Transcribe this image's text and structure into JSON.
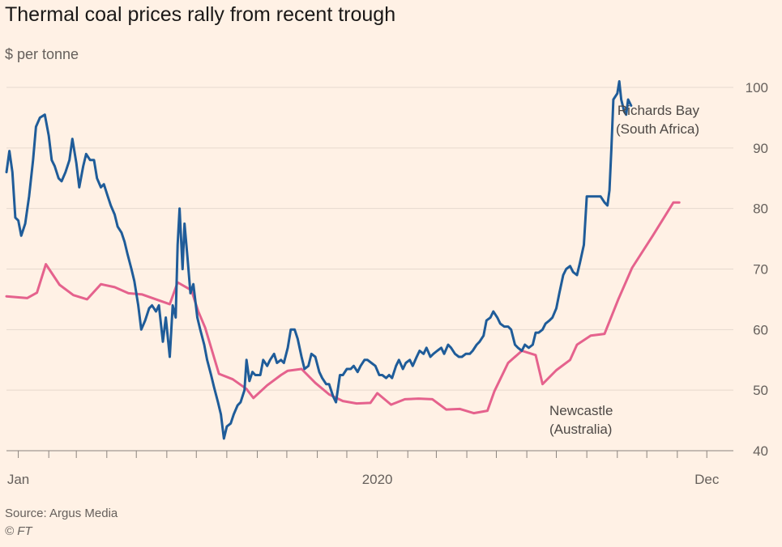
{
  "header": {
    "title": "Thermal coal prices rally from recent trough",
    "subtitle": "$ per tonne"
  },
  "footer": {
    "source": "Source: Argus Media",
    "credit": "© FT"
  },
  "chart_data": {
    "type": "line",
    "title": "Thermal coal prices rally from recent trough",
    "ylabel": "$ per tonne",
    "xlabel": "",
    "ylim": [
      40,
      100
    ],
    "yticks": [
      40,
      50,
      60,
      70,
      80,
      90,
      100
    ],
    "xlim": [
      "2018-12-20",
      "2020-12-28"
    ],
    "x_tick_marks": [
      "2019-01-01",
      "2019-02-01",
      "2019-03-01",
      "2019-04-01",
      "2019-05-01",
      "2019-06-01",
      "2019-07-01",
      "2019-08-01",
      "2019-09-01",
      "2019-10-01",
      "2019-11-01",
      "2019-12-01",
      "2020-01-01",
      "2020-02-01",
      "2020-03-01",
      "2020-04-01",
      "2020-05-01",
      "2020-06-01",
      "2020-07-01",
      "2020-08-01",
      "2020-09-01",
      "2020-10-01",
      "2020-11-01",
      "2020-12-01"
    ],
    "x_tick_labels": [
      {
        "date": "2019-01-01",
        "label": "Jan"
      },
      {
        "date": "2020-01-01",
        "label": "2020"
      },
      {
        "date": "2020-12-01",
        "label": "Dec"
      }
    ],
    "grid": true,
    "y_axis_position": "right",
    "series": [
      {
        "name": "Richards Bay (South Africa)",
        "annotation": [
          "Richards Bay",
          "(South Africa)"
        ],
        "color": "#1f5c99",
        "points": [
          [
            "2018-12-20",
            86
          ],
          [
            "2018-12-23",
            89.5
          ],
          [
            "2018-12-26",
            86
          ],
          [
            "2018-12-29",
            78.5
          ],
          [
            "2019-01-01",
            78
          ],
          [
            "2019-01-04",
            75.5
          ],
          [
            "2019-01-08",
            77.5
          ],
          [
            "2019-01-12",
            82
          ],
          [
            "2019-01-16",
            88
          ],
          [
            "2019-01-19",
            93.5
          ],
          [
            "2019-01-23",
            95
          ],
          [
            "2019-01-28",
            95.5
          ],
          [
            "2019-02-01",
            92
          ],
          [
            "2019-02-04",
            88
          ],
          [
            "2019-02-07",
            87
          ],
          [
            "2019-02-11",
            85
          ],
          [
            "2019-02-14",
            84.5
          ],
          [
            "2019-02-18",
            86
          ],
          [
            "2019-02-22",
            88
          ],
          [
            "2019-02-25",
            91.5
          ],
          [
            "2019-03-01",
            87.5
          ],
          [
            "2019-03-04",
            83.5
          ],
          [
            "2019-03-08",
            87
          ],
          [
            "2019-03-11",
            89
          ],
          [
            "2019-03-15",
            88
          ],
          [
            "2019-03-19",
            88
          ],
          [
            "2019-03-22",
            85
          ],
          [
            "2019-03-26",
            83.5
          ],
          [
            "2019-03-29",
            84
          ],
          [
            "2019-04-02",
            82
          ],
          [
            "2019-04-05",
            80.5
          ],
          [
            "2019-04-09",
            79
          ],
          [
            "2019-04-12",
            77
          ],
          [
            "2019-04-16",
            76
          ],
          [
            "2019-04-19",
            74.5
          ],
          [
            "2019-04-22",
            72.5
          ],
          [
            "2019-04-26",
            70
          ],
          [
            "2019-04-29",
            68
          ],
          [
            "2019-05-03",
            64
          ],
          [
            "2019-05-06",
            60
          ],
          [
            "2019-05-10",
            61.5
          ],
          [
            "2019-05-14",
            63.5
          ],
          [
            "2019-05-17",
            64
          ],
          [
            "2019-05-21",
            63
          ],
          [
            "2019-05-24",
            64
          ],
          [
            "2019-05-28",
            58
          ],
          [
            "2019-05-31",
            62
          ],
          [
            "2019-06-04",
            55.5
          ],
          [
            "2019-06-07",
            64
          ],
          [
            "2019-06-10",
            62
          ],
          [
            "2019-06-12",
            74
          ],
          [
            "2019-06-14",
            80
          ],
          [
            "2019-06-17",
            70
          ],
          [
            "2019-06-19",
            77.5
          ],
          [
            "2019-06-22",
            72
          ],
          [
            "2019-06-25",
            66
          ],
          [
            "2019-06-28",
            67.5
          ],
          [
            "2019-07-02",
            62
          ],
          [
            "2019-07-05",
            60
          ],
          [
            "2019-07-09",
            57.5
          ],
          [
            "2019-07-12",
            55
          ],
          [
            "2019-07-16",
            52.5
          ],
          [
            "2019-07-19",
            50.5
          ],
          [
            "2019-07-23",
            48
          ],
          [
            "2019-07-26",
            46
          ],
          [
            "2019-07-29",
            42
          ],
          [
            "2019-08-01",
            44
          ],
          [
            "2019-08-05",
            44.5
          ],
          [
            "2019-08-08",
            46
          ],
          [
            "2019-08-12",
            47.5
          ],
          [
            "2019-08-15",
            48
          ],
          [
            "2019-08-19",
            50
          ],
          [
            "2019-08-21",
            55
          ],
          [
            "2019-08-24",
            51.5
          ],
          [
            "2019-08-27",
            53
          ],
          [
            "2019-08-30",
            52.5
          ],
          [
            "2019-09-04",
            52.5
          ],
          [
            "2019-09-07",
            55
          ],
          [
            "2019-09-11",
            54
          ],
          [
            "2019-09-14",
            55
          ],
          [
            "2019-09-18",
            56
          ],
          [
            "2019-09-21",
            54.5
          ],
          [
            "2019-09-25",
            55
          ],
          [
            "2019-09-28",
            54.5
          ],
          [
            "2019-10-02",
            57
          ],
          [
            "2019-10-05",
            60
          ],
          [
            "2019-10-09",
            60
          ],
          [
            "2019-10-12",
            58.5
          ],
          [
            "2019-10-16",
            55.5
          ],
          [
            "2019-10-19",
            53.5
          ],
          [
            "2019-10-23",
            54
          ],
          [
            "2019-10-26",
            56
          ],
          [
            "2019-10-30",
            55.5
          ],
          [
            "2019-11-03",
            53
          ],
          [
            "2019-11-06",
            52
          ],
          [
            "2019-11-10",
            51
          ],
          [
            "2019-11-13",
            51
          ],
          [
            "2019-11-17",
            49
          ],
          [
            "2019-11-20",
            48
          ],
          [
            "2019-11-24",
            52.5
          ],
          [
            "2019-11-27",
            52.5
          ],
          [
            "2019-12-01",
            53.5
          ],
          [
            "2019-12-05",
            53.5
          ],
          [
            "2019-12-08",
            54
          ],
          [
            "2019-12-12",
            53
          ],
          [
            "2019-12-15",
            54
          ],
          [
            "2019-12-19",
            55
          ],
          [
            "2019-12-22",
            55
          ],
          [
            "2019-12-26",
            54.5
          ],
          [
            "2019-12-30",
            54
          ],
          [
            "2020-01-03",
            52.5
          ],
          [
            "2020-01-06",
            52.5
          ],
          [
            "2020-01-10",
            52
          ],
          [
            "2020-01-13",
            52.5
          ],
          [
            "2020-01-16",
            52
          ],
          [
            "2020-01-20",
            54
          ],
          [
            "2020-01-23",
            55
          ],
          [
            "2020-01-27",
            53.5
          ],
          [
            "2020-01-30",
            54.5
          ],
          [
            "2020-02-03",
            55
          ],
          [
            "2020-02-06",
            54
          ],
          [
            "2020-02-10",
            55.5
          ],
          [
            "2020-02-13",
            56.5
          ],
          [
            "2020-02-17",
            56
          ],
          [
            "2020-02-20",
            57
          ],
          [
            "2020-02-24",
            55.5
          ],
          [
            "2020-02-27",
            56
          ],
          [
            "2020-03-02",
            56.5
          ],
          [
            "2020-03-06",
            57
          ],
          [
            "2020-03-09",
            56
          ],
          [
            "2020-03-13",
            57.5
          ],
          [
            "2020-03-16",
            57
          ],
          [
            "2020-03-20",
            56
          ],
          [
            "2020-03-24",
            55.5
          ],
          [
            "2020-03-27",
            55.5
          ],
          [
            "2020-03-31",
            56
          ],
          [
            "2020-04-04",
            56
          ],
          [
            "2020-04-07",
            56.5
          ],
          [
            "2020-04-11",
            57.5
          ],
          [
            "2020-04-14",
            58
          ],
          [
            "2020-04-18",
            59
          ],
          [
            "2020-04-21",
            61.5
          ],
          [
            "2020-04-25",
            62
          ],
          [
            "2020-04-28",
            63
          ],
          [
            "2020-05-02",
            62
          ],
          [
            "2020-05-05",
            61
          ],
          [
            "2020-05-09",
            60.5
          ],
          [
            "2020-05-13",
            60.5
          ],
          [
            "2020-05-16",
            60
          ],
          [
            "2020-05-20",
            57.5
          ],
          [
            "2020-05-23",
            57
          ],
          [
            "2020-05-27",
            56.5
          ],
          [
            "2020-05-30",
            57.5
          ],
          [
            "2020-06-03",
            57
          ],
          [
            "2020-06-07",
            57.5
          ],
          [
            "2020-06-10",
            59.5
          ],
          [
            "2020-06-13",
            59.5
          ],
          [
            "2020-06-17",
            60
          ],
          [
            "2020-06-20",
            61
          ],
          [
            "2020-06-24",
            61.5
          ],
          [
            "2020-06-27",
            62
          ],
          [
            "2020-07-01",
            63.5
          ],
          [
            "2020-07-04",
            66
          ],
          [
            "2020-07-08",
            69
          ],
          [
            "2020-07-11",
            70
          ],
          [
            "2020-07-15",
            70.5
          ],
          [
            "2020-07-18",
            69.5
          ],
          [
            "2020-07-22",
            69
          ],
          [
            "2020-07-25",
            71
          ],
          [
            "2020-07-29",
            74
          ],
          [
            "2020-08-01",
            82
          ],
          [
            "2020-08-05",
            82
          ],
          [
            "2020-08-08",
            82
          ],
          [
            "2020-08-12",
            82
          ],
          [
            "2020-08-15",
            82
          ],
          [
            "2020-08-19",
            81
          ],
          [
            "2020-08-22",
            80.5
          ],
          [
            "2020-08-24",
            83
          ],
          [
            "2020-08-26",
            90
          ],
          [
            "2020-08-28",
            98
          ],
          [
            "2020-09-01",
            99
          ],
          [
            "2020-09-03",
            101
          ],
          [
            "2020-09-05",
            98
          ],
          [
            "2020-09-08",
            96
          ],
          [
            "2020-09-10",
            95.5
          ],
          [
            "2020-09-12",
            98
          ],
          [
            "2020-09-15",
            97
          ]
        ]
      },
      {
        "name": "Newcastle (Australia)",
        "annotation": [
          "Newcastle",
          "(Australia)"
        ],
        "color": "#e5628d",
        "points": [
          [
            "2018-12-20",
            65.5
          ],
          [
            "2019-01-10",
            65.2
          ],
          [
            "2019-01-20",
            66.1
          ],
          [
            "2019-01-29",
            70.8
          ],
          [
            "2019-02-12",
            67.4
          ],
          [
            "2019-02-26",
            65.7
          ],
          [
            "2019-03-12",
            65
          ],
          [
            "2019-03-26",
            67.5
          ],
          [
            "2019-04-09",
            67
          ],
          [
            "2019-04-23",
            66
          ],
          [
            "2019-05-07",
            65.8
          ],
          [
            "2019-05-21",
            65
          ],
          [
            "2019-06-04",
            64.2
          ],
          [
            "2019-06-12",
            67.8
          ],
          [
            "2019-06-26",
            66.5
          ],
          [
            "2019-07-03",
            63
          ],
          [
            "2019-07-10",
            60.3
          ],
          [
            "2019-07-24",
            52.7
          ],
          [
            "2019-08-07",
            51.8
          ],
          [
            "2019-08-21",
            50.2
          ],
          [
            "2019-08-28",
            48.7
          ],
          [
            "2019-09-11",
            50.8
          ],
          [
            "2019-09-25",
            52.5
          ],
          [
            "2019-10-02",
            53.2
          ],
          [
            "2019-10-16",
            53.5
          ],
          [
            "2019-10-30",
            51.2
          ],
          [
            "2019-11-13",
            49.3
          ],
          [
            "2019-11-27",
            48.2
          ],
          [
            "2019-12-11",
            47.8
          ],
          [
            "2019-12-25",
            47.9
          ],
          [
            "2020-01-01",
            49.5
          ],
          [
            "2020-01-15",
            47.6
          ],
          [
            "2020-01-29",
            48.5
          ],
          [
            "2020-02-12",
            48.6
          ],
          [
            "2020-02-26",
            48.5
          ],
          [
            "2020-03-11",
            46.8
          ],
          [
            "2020-03-25",
            46.9
          ],
          [
            "2020-04-08",
            46.2
          ],
          [
            "2020-04-22",
            46.6
          ],
          [
            "2020-04-29",
            49.8
          ],
          [
            "2020-05-13",
            54.5
          ],
          [
            "2020-05-27",
            56.5
          ],
          [
            "2020-06-10",
            55.8
          ],
          [
            "2020-06-17",
            51
          ],
          [
            "2020-07-01",
            53.3
          ],
          [
            "2020-07-15",
            55
          ],
          [
            "2020-07-22",
            57.5
          ],
          [
            "2020-08-05",
            59
          ],
          [
            "2020-08-19",
            59.3
          ],
          [
            "2020-09-02",
            65
          ],
          [
            "2020-09-16",
            70.2
          ],
          [
            "2020-10-07",
            75.5
          ],
          [
            "2020-10-28",
            81
          ],
          [
            "2020-11-03",
            81
          ]
        ]
      }
    ]
  }
}
